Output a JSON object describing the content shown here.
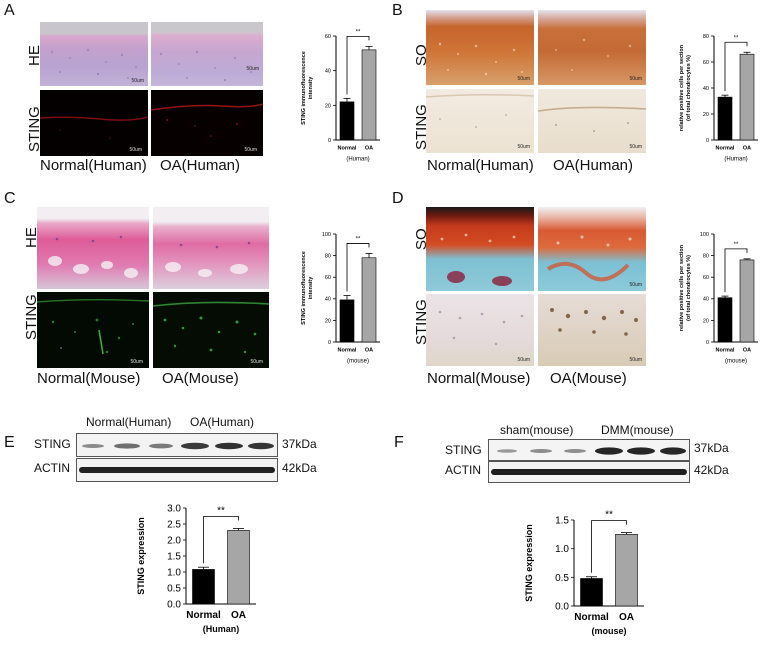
{
  "panels": {
    "A": {
      "letter": "A",
      "stain_top": "HE",
      "stain_bottom": "STING",
      "scale_bar": "50um",
      "captions": [
        "Normal(Human)",
        "OA(Human)"
      ]
    },
    "B": {
      "letter": "B",
      "stain_top": "SO",
      "stain_bottom": "STING",
      "scale_bar": "50um",
      "captions": [
        "Normal(Human)",
        "OA(Human)"
      ]
    },
    "C": {
      "letter": "C",
      "stain_top": "HE",
      "stain_bottom": "STING",
      "scale_bar": "50um",
      "captions": [
        "Normal(Mouse)",
        "OA(Mouse)"
      ]
    },
    "D": {
      "letter": "D",
      "stain_top": "SO",
      "stain_bottom": "STING",
      "scale_bar": "50um",
      "captions": [
        "Normal(Mouse)",
        "OA(Mouse)"
      ]
    },
    "E": {
      "letter": "E",
      "group_labels": [
        "Normal(Human)",
        "OA(Human)"
      ],
      "rows": [
        {
          "label": "STING",
          "size": "37kDa"
        },
        {
          "label": "ACTIN",
          "size": "42kDa"
        }
      ]
    },
    "F": {
      "letter": "F",
      "group_labels": [
        "sham(mouse)",
        "DMM(mouse)"
      ],
      "rows": [
        {
          "label": "STING",
          "size": "37kDa"
        },
        {
          "label": "ACTIN",
          "size": "42kDa"
        }
      ]
    }
  },
  "chart_data": [
    {
      "id": "A",
      "type": "bar",
      "categories": [
        "Normal",
        "OA"
      ],
      "values": [
        22,
        52
      ],
      "errors": [
        2,
        2
      ],
      "ylabel": "STING immunofluorescence intensity",
      "xlabel": "(Human)",
      "yticks": [
        0,
        20,
        40,
        60
      ],
      "ylim": [
        0,
        60
      ],
      "significance": "**",
      "colors": [
        "#000000",
        "#a6a6a6"
      ]
    },
    {
      "id": "B",
      "type": "bar",
      "categories": [
        "Normal",
        "OA"
      ],
      "values": [
        33,
        66
      ],
      "errors": [
        1.5,
        1.5
      ],
      "ylabel": "relative positive cells per section (of total chondrocytes %)",
      "xlabel": "(Human)",
      "yticks": [
        0,
        20,
        40,
        60,
        80
      ],
      "ylim": [
        0,
        80
      ],
      "significance": "**",
      "colors": [
        "#000000",
        "#a6a6a6"
      ]
    },
    {
      "id": "C",
      "type": "bar",
      "categories": [
        "Normal",
        "OA"
      ],
      "values": [
        39,
        78
      ],
      "errors": [
        4,
        4
      ],
      "ylabel": "STING immunofluorescence intensity",
      "xlabel": "(mouse)",
      "yticks": [
        0,
        20,
        40,
        60,
        80,
        100
      ],
      "ylim": [
        0,
        100
      ],
      "significance": "**",
      "colors": [
        "#000000",
        "#a6a6a6"
      ]
    },
    {
      "id": "D",
      "type": "bar",
      "categories": [
        "Normal",
        "OA"
      ],
      "values": [
        41,
        76
      ],
      "errors": [
        1.5,
        1
      ],
      "ylabel": "relative positive cells per section (of total chondrocytes %)",
      "xlabel": "(mouse)",
      "yticks": [
        0,
        20,
        40,
        60,
        80,
        100
      ],
      "ylim": [
        0,
        100
      ],
      "significance": "**",
      "colors": [
        "#000000",
        "#a6a6a6"
      ]
    },
    {
      "id": "E",
      "type": "bar",
      "categories": [
        "Normal",
        "OA"
      ],
      "values": [
        1.08,
        2.3
      ],
      "errors": [
        0.07,
        0.06
      ],
      "ylabel": "STING expression",
      "xlabel": "(Human)",
      "yticks": [
        0.0,
        0.5,
        1.0,
        1.5,
        2.0,
        2.5,
        3.0
      ],
      "ylim": [
        0,
        3.0
      ],
      "significance": "**",
      "colors": [
        "#000000",
        "#a6a6a6"
      ]
    },
    {
      "id": "F",
      "type": "bar",
      "categories": [
        "Normal",
        "OA"
      ],
      "values": [
        0.48,
        1.25
      ],
      "errors": [
        0.03,
        0.03
      ],
      "ylabel": "STING expression",
      "xlabel": "(mouse)",
      "yticks": [
        0.0,
        0.5,
        1.0,
        1.5
      ],
      "ylim": [
        0,
        1.5
      ],
      "significance": "**",
      "colors": [
        "#000000",
        "#a6a6a6"
      ]
    }
  ]
}
